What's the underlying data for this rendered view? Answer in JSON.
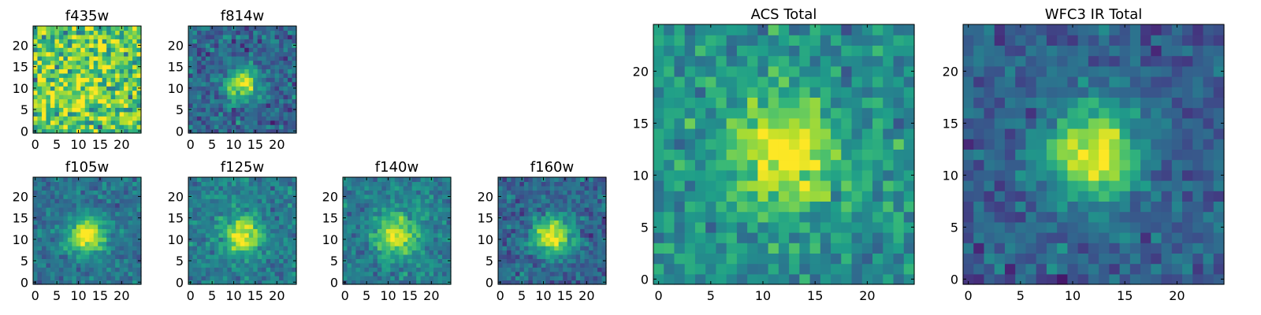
{
  "chart_data": [
    {
      "type": "heatmap",
      "title": "f435w",
      "xlim": [
        0,
        24
      ],
      "ylim": [
        0,
        24
      ],
      "xticks": [
        0,
        5,
        10,
        15,
        20
      ],
      "yticks": [
        0,
        5,
        10,
        15,
        20
      ],
      "center": [
        11,
        12
      ],
      "sigma": 6.0,
      "peak": 0.12,
      "base": 0.72,
      "noise": 0.38,
      "seed": 11
    },
    {
      "type": "heatmap",
      "title": "f814w",
      "xlim": [
        0,
        24
      ],
      "ylim": [
        0,
        24
      ],
      "xticks": [
        0,
        5,
        10,
        15,
        20
      ],
      "yticks": [
        0,
        5,
        10,
        15,
        20
      ],
      "center": [
        12,
        11
      ],
      "sigma": 2.6,
      "peak": 0.6,
      "base": 0.33,
      "noise": 0.2,
      "seed": 23
    },
    {
      "type": "heatmap",
      "title": "f105w",
      "xlim": [
        0,
        24
      ],
      "ylim": [
        0,
        24
      ],
      "xticks": [
        0,
        5,
        10,
        15,
        20
      ],
      "yticks": [
        0,
        5,
        10,
        15,
        20
      ],
      "center": [
        12,
        11
      ],
      "sigma": 2.9,
      "peak": 0.66,
      "base": 0.38,
      "noise": 0.15,
      "seed": 37
    },
    {
      "type": "heatmap",
      "title": "f125w",
      "xlim": [
        0,
        24
      ],
      "ylim": [
        0,
        24
      ],
      "xticks": [
        0,
        5,
        10,
        15,
        20
      ],
      "yticks": [
        0,
        5,
        10,
        15,
        20
      ],
      "center": [
        12,
        11
      ],
      "sigma": 2.9,
      "peak": 0.6,
      "base": 0.42,
      "noise": 0.16,
      "seed": 41
    },
    {
      "type": "heatmap",
      "title": "f140w",
      "xlim": [
        0,
        24
      ],
      "ylim": [
        0,
        24
      ],
      "xticks": [
        0,
        5,
        10,
        15,
        20
      ],
      "yticks": [
        0,
        5,
        10,
        15,
        20
      ],
      "center": [
        12,
        11
      ],
      "sigma": 3.3,
      "peak": 0.55,
      "base": 0.42,
      "noise": 0.16,
      "seed": 53
    },
    {
      "type": "heatmap",
      "title": "f160w",
      "xlim": [
        0,
        24
      ],
      "ylim": [
        0,
        24
      ],
      "xticks": [
        0,
        5,
        10,
        15,
        20
      ],
      "yticks": [
        0,
        5,
        10,
        15,
        20
      ],
      "center": [
        12,
        11
      ],
      "sigma": 3.1,
      "peak": 0.68,
      "base": 0.33,
      "noise": 0.17,
      "seed": 67
    },
    {
      "type": "heatmap",
      "title": "ACS Total",
      "xlim": [
        0,
        24
      ],
      "ylim": [
        0,
        24
      ],
      "xticks": [
        0,
        5,
        10,
        15,
        20
      ],
      "yticks": [
        0,
        5,
        10,
        15,
        20
      ],
      "center": [
        12,
        12
      ],
      "sigma": 3.6,
      "peak": 0.5,
      "base": 0.5,
      "noise": 0.2,
      "seed": 79
    },
    {
      "type": "heatmap",
      "title": "WFC3 IR Total",
      "xlim": [
        0,
        24
      ],
      "ylim": [
        0,
        24
      ],
      "xticks": [
        0,
        5,
        10,
        15,
        20
      ],
      "yticks": [
        0,
        5,
        10,
        15,
        20
      ],
      "center": [
        12,
        12
      ],
      "sigma": 3.0,
      "peak": 0.72,
      "base": 0.3,
      "noise": 0.16,
      "seed": 97
    }
  ],
  "colormap": [
    "#440154",
    "#482878",
    "#3e4a89",
    "#31688e",
    "#26828e",
    "#1f9e89",
    "#35b779",
    "#6ece58",
    "#b5de2b",
    "#fde725"
  ]
}
